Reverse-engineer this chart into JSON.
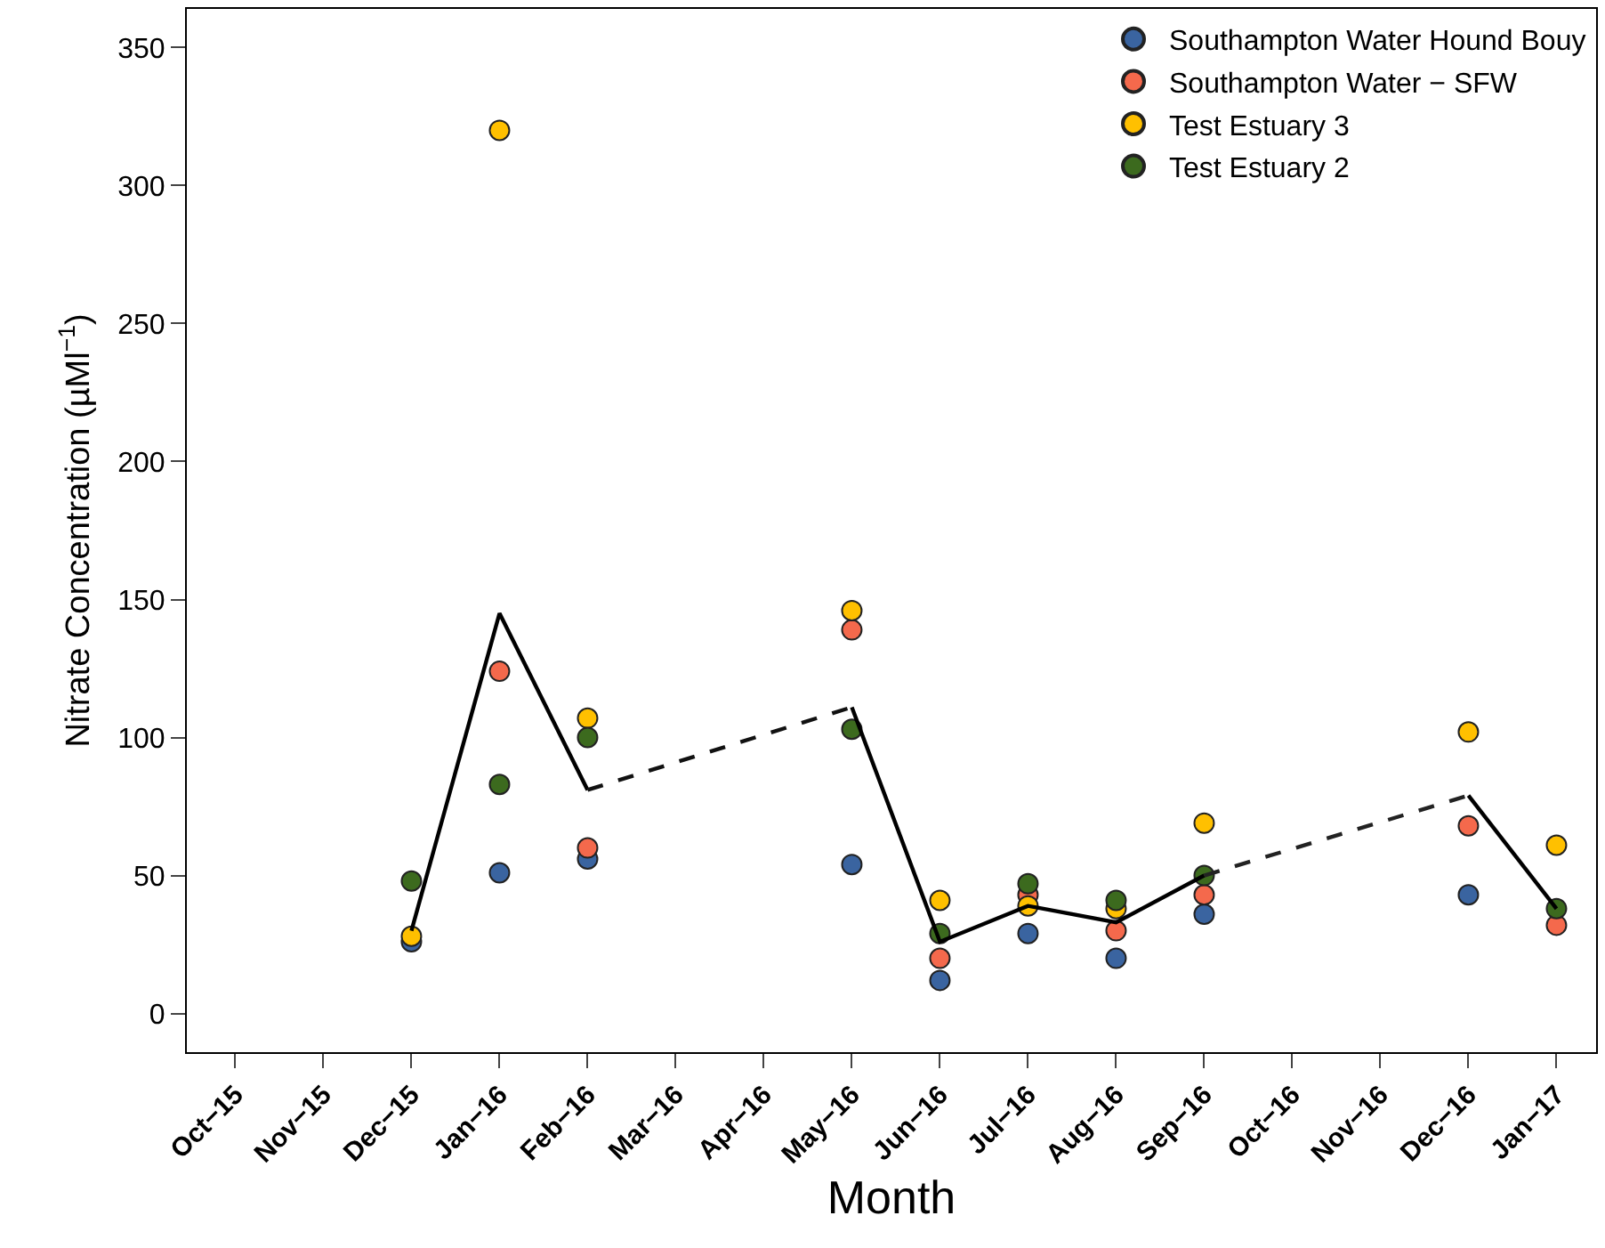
{
  "chart_data": {
    "type": "scatter",
    "xlabel": "Month",
    "ylabel": "Nitrate Concentration (µMl$^{−1}$)",
    "categories": [
      "Oct−15",
      "Nov−15",
      "Dec−15",
      "Jan−16",
      "Feb−16",
      "Mar−16",
      "Apr−16",
      "May−16",
      "Jun−16",
      "Jul−16",
      "Aug−16",
      "Sep−16",
      "Oct−16",
      "Nov−16",
      "Dec−16",
      "Jan−17"
    ],
    "ylim": [
      -14,
      364
    ],
    "yticks": [
      0,
      50,
      100,
      150,
      200,
      250,
      300,
      350
    ],
    "legend": "top right",
    "marker": "circle",
    "series": [
      {
        "name": "Southampton Water Hound Bouy",
        "color": "#3a64a0",
        "values": [
          null,
          null,
          26,
          51,
          56,
          null,
          null,
          54,
          12,
          29,
          20,
          36,
          null,
          null,
          43,
          null
        ]
      },
      {
        "name": "Southampton Water − SFW",
        "color": "#f4694c",
        "values": [
          null,
          null,
          null,
          124,
          60,
          null,
          null,
          139,
          20,
          43,
          30,
          43,
          null,
          null,
          68,
          32
        ]
      },
      {
        "name": "Test Estuary 3",
        "color": "#ffc000",
        "values": [
          null,
          null,
          28,
          320,
          107,
          null,
          null,
          146,
          41,
          39,
          38,
          69,
          null,
          null,
          102,
          61
        ]
      },
      {
        "name": "Test Estuary 2",
        "color": "#3c6a1e",
        "values": [
          null,
          null,
          48,
          83,
          100,
          null,
          null,
          103,
          29,
          47,
          41,
          50,
          null,
          null,
          null,
          38
        ]
      },
      {
        "type": "line",
        "color": "#000000",
        "line_style": "solid",
        "marker": "none",
        "values": [
          null,
          null,
          30,
          145,
          81,
          null,
          null,
          111,
          26,
          39,
          33,
          50,
          null,
          null,
          79,
          38
        ]
      },
      {
        "type": "line",
        "color": "#111111",
        "line_style": "dashed",
        "marker": "none",
        "values": [
          null,
          null,
          null,
          null,
          81,
          null,
          null,
          111,
          null,
          null,
          null,
          null,
          null,
          null,
          null,
          null
        ]
      },
      {
        "type": "line",
        "color": "#222222",
        "line_style": "dashed",
        "marker": "none",
        "values": [
          null,
          null,
          null,
          null,
          null,
          null,
          null,
          null,
          null,
          null,
          null,
          50,
          null,
          null,
          79,
          null
        ]
      }
    ]
  }
}
